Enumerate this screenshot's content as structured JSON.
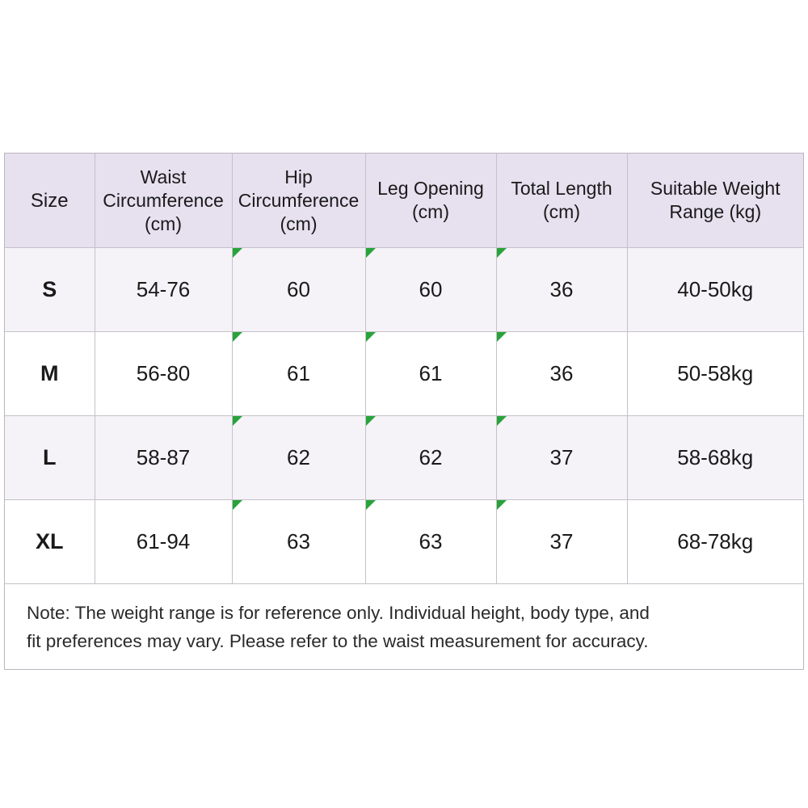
{
  "table": {
    "headers": {
      "size": "Size",
      "waist": [
        "Waist",
        "Circumference",
        "(cm)"
      ],
      "hip": [
        "Hip",
        "Circumference",
        "(cm)"
      ],
      "leg": [
        "Leg Opening",
        "(cm)"
      ],
      "length": [
        "Total Length",
        "(cm)"
      ],
      "weight": [
        "Suitable Weight",
        "Range (kg)"
      ]
    },
    "rows": [
      {
        "size": "S",
        "waist": "54-76",
        "hip": "60",
        "leg": "60",
        "length": "36",
        "weight": "40-50kg"
      },
      {
        "size": "M",
        "waist": "56-80",
        "hip": "61",
        "leg": "61",
        "length": "36",
        "weight": "50-58kg"
      },
      {
        "size": "L",
        "waist": "58-87",
        "hip": "62",
        "leg": "62",
        "length": "37",
        "weight": "58-68kg"
      },
      {
        "size": "XL",
        "waist": "61-94",
        "hip": "63",
        "leg": "63",
        "length": "37",
        "weight": "68-78kg"
      }
    ]
  },
  "note": {
    "line1": "Note: The weight range is for reference only. Individual height, body type, and",
    "line2": "fit preferences may vary. Please refer to the waist measurement for accuracy."
  },
  "colors": {
    "header_bg": "#e6e0ef",
    "band_bg": "#f5f3f8",
    "marker": "#28a33a",
    "border": "#c4c1c8"
  }
}
